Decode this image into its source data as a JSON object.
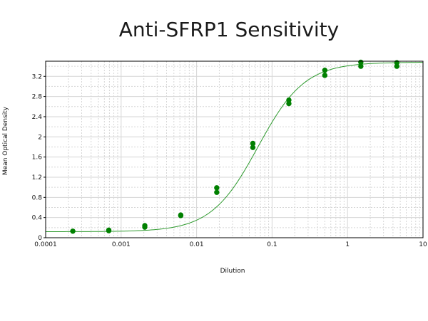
{
  "chart_data": {
    "type": "scatter",
    "title": "Anti-SFRP1 Sensitivity",
    "xlabel": "Dilution",
    "ylabel": "Mean Optical Density",
    "x_scale": "log",
    "xlim": [
      0.0001,
      10
    ],
    "ylim": [
      0,
      3.5
    ],
    "grid": true,
    "x_ticks": [
      {
        "value": 0.0001,
        "label": "0.0001"
      },
      {
        "value": 0.001,
        "label": "0.001"
      },
      {
        "value": 0.01,
        "label": "0.01"
      },
      {
        "value": 0.1,
        "label": "0.1"
      },
      {
        "value": 1,
        "label": "1"
      },
      {
        "value": 10,
        "label": "10"
      }
    ],
    "y_ticks": [
      {
        "value": 0,
        "label": "0"
      },
      {
        "value": 0.4,
        "label": "0.4"
      },
      {
        "value": 0.8,
        "label": "0.8"
      },
      {
        "value": 1.2,
        "label": "1.2"
      },
      {
        "value": 1.6,
        "label": "1.6"
      },
      {
        "value": 2,
        "label": "2"
      },
      {
        "value": 2.4,
        "label": "2.4"
      },
      {
        "value": 2.8,
        "label": "2.8"
      },
      {
        "value": 3.2,
        "label": "3.2"
      }
    ],
    "series": [
      {
        "points": [
          {
            "x": 0.000229,
            "y": 0.13
          },
          {
            "x": 0.000686,
            "y": 0.15
          },
          {
            "x": 0.000686,
            "y": 0.14
          },
          {
            "x": 0.00206,
            "y": 0.24
          },
          {
            "x": 0.00206,
            "y": 0.21
          },
          {
            "x": 0.00617,
            "y": 0.45
          },
          {
            "x": 0.00617,
            "y": 0.44
          },
          {
            "x": 0.0185,
            "y": 0.99
          },
          {
            "x": 0.0185,
            "y": 0.9
          },
          {
            "x": 0.0556,
            "y": 1.87
          },
          {
            "x": 0.0556,
            "y": 1.79
          },
          {
            "x": 0.167,
            "y": 2.73
          },
          {
            "x": 0.167,
            "y": 2.66
          },
          {
            "x": 0.5,
            "y": 3.32
          },
          {
            "x": 0.5,
            "y": 3.22
          },
          {
            "x": 1.5,
            "y": 3.48
          },
          {
            "x": 1.5,
            "y": 3.4
          },
          {
            "x": 4.5,
            "y": 3.47
          },
          {
            "x": 4.5,
            "y": 3.4
          }
        ],
        "fit": {
          "model": "4PL",
          "bottom": 0.12,
          "top": 3.48,
          "ec50": 0.065,
          "hill": 1.4
        },
        "color": "#008000"
      }
    ]
  },
  "colors": {
    "marker": "#008000",
    "fit_line": "#2e9a2e",
    "grid": "#d6d6d6",
    "frame": "#000000"
  }
}
